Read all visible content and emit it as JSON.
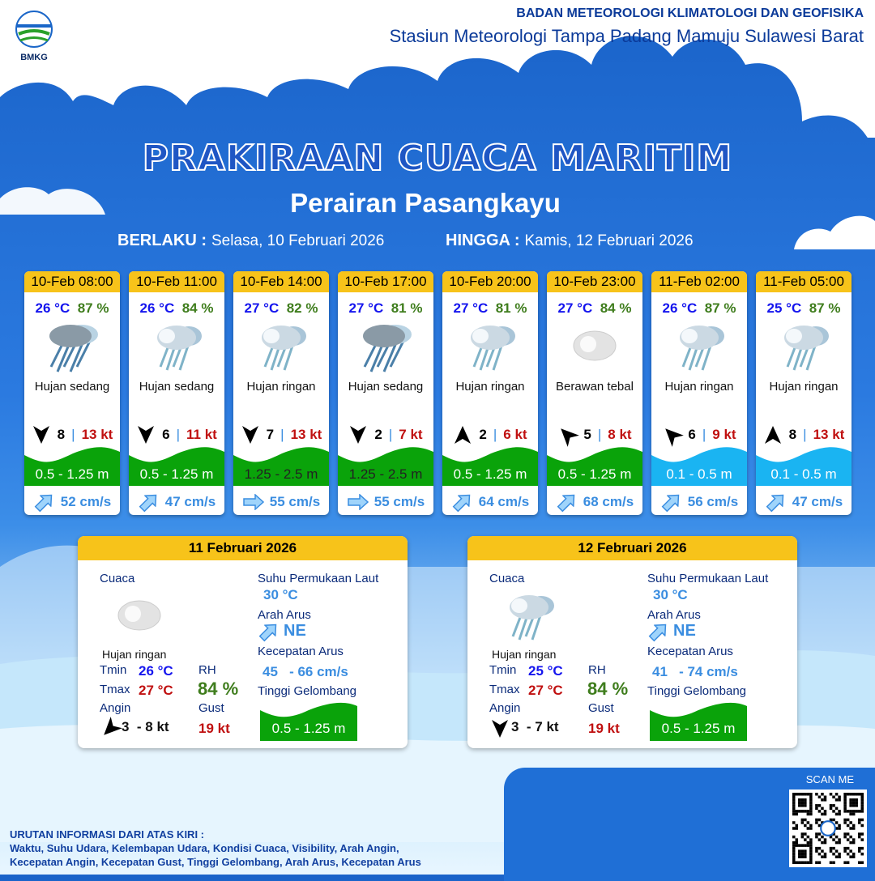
{
  "header": {
    "org": "BADAN METEOROLOGI KLIMATOLOGI DAN GEOFISIKA",
    "station": "Stasiun Meteorologi Tampa Padang Mamuju Sulawesi Barat",
    "logo_text": "BMKG"
  },
  "title": "PRAKIRAAN CUACA MARITIM",
  "subtitle": "Perairan Pasangkayu",
  "valid": {
    "from_label": "BERLAKU :",
    "from": "Selasa, 10 Februari 2026",
    "to_label": "HINGGA :",
    "to": "Kamis, 12 Februari 2026"
  },
  "colors": {
    "wave_green": "#0aa30a",
    "wave_blue": "#1ab4f2",
    "header_yellow": "#f7c31a"
  },
  "forecasts": [
    {
      "time": "10-Feb 08:00",
      "temp": "26 °C",
      "rh": "87 %",
      "icon": "heavy-rain-icon",
      "cond": "Hujan sedang",
      "wind_dir": "N",
      "wind_speed": "8",
      "gust": "13 kt",
      "wave": "0.5 - 1.25 m",
      "wave_color": "green",
      "current_dir": "NE",
      "current": "52 cm/s"
    },
    {
      "time": "10-Feb 11:00",
      "temp": "26 °C",
      "rh": "84 %",
      "icon": "light-rain-icon",
      "cond": "Hujan sedang",
      "wind_dir": "N",
      "wind_speed": "6",
      "gust": "11 kt",
      "wave": "0.5 - 1.25 m",
      "wave_color": "green",
      "current_dir": "NE",
      "current": "47 cm/s"
    },
    {
      "time": "10-Feb 14:00",
      "temp": "27 °C",
      "rh": "82 %",
      "icon": "light-rain-icon",
      "cond": "Hujan ringan",
      "wind_dir": "N",
      "wind_speed": "7",
      "gust": "13 kt",
      "wave": "1.25 - 2.5 m",
      "wave_color": "green",
      "current_dir": "E",
      "current": "55 cm/s"
    },
    {
      "time": "10-Feb 17:00",
      "temp": "27 °C",
      "rh": "81 %",
      "icon": "heavy-rain-icon",
      "cond": "Hujan sedang",
      "wind_dir": "N",
      "wind_speed": "2",
      "gust": "7 kt",
      "wave": "1.25 - 2.5 m",
      "wave_color": "green",
      "current_dir": "E",
      "current": "55 cm/s"
    },
    {
      "time": "10-Feb 20:00",
      "temp": "27 °C",
      "rh": "81 %",
      "icon": "light-rain-icon",
      "cond": "Hujan ringan",
      "wind_dir": "S",
      "wind_speed": "2",
      "gust": "6 kt",
      "wave": "0.5 - 1.25 m",
      "wave_color": "green",
      "current_dir": "NE",
      "current": "64 cm/s"
    },
    {
      "time": "10-Feb 23:00",
      "temp": "27 °C",
      "rh": "84 %",
      "icon": "cloudy-icon",
      "cond": "Berawan tebal",
      "wind_dir": "SE",
      "wind_speed": "5",
      "gust": "8 kt",
      "wave": "0.5 - 1.25 m",
      "wave_color": "green",
      "current_dir": "NE",
      "current": "68 cm/s"
    },
    {
      "time": "11-Feb 02:00",
      "temp": "26 °C",
      "rh": "87 %",
      "icon": "light-rain-icon",
      "cond": "Hujan ringan",
      "wind_dir": "SE",
      "wind_speed": "6",
      "gust": "9 kt",
      "wave": "0.1 - 0.5 m",
      "wave_color": "blue",
      "current_dir": "NE",
      "current": "56 cm/s"
    },
    {
      "time": "11-Feb 05:00",
      "temp": "25 °C",
      "rh": "87 %",
      "icon": "light-rain-icon",
      "cond": "Hujan ringan",
      "wind_dir": "S",
      "wind_speed": "8",
      "gust": "13 kt",
      "wave": "0.1 - 0.5 m",
      "wave_color": "blue",
      "current_dir": "NE",
      "current": "47 cm/s"
    }
  ],
  "labels": {
    "weather": "Cuaca",
    "sst": "Suhu Permukaan Laut",
    "current_dir": "Arah Arus",
    "current_speed": "Kecepatan Arus",
    "wave": "Tinggi Gelombang",
    "tmin": "Tmin",
    "tmax": "Tmax",
    "rh": "RH",
    "wind": "Angin",
    "gust": "Gust"
  },
  "daily": [
    {
      "date": "11 Februari 2026",
      "icon": "cloudy-icon",
      "cond": "Hujan ringan",
      "tmin": "26 °C",
      "tmax": "27 °C",
      "rh": "84 %",
      "wind": "3  - 8 kt",
      "gust": "19 kt",
      "sst": "30 °C",
      "current_dir": "NE",
      "current_speed": "45   - 66 cm/s",
      "wave": "0.5 - 1.25 m"
    },
    {
      "date": "12 Februari 2026",
      "icon": "light-rain-icon",
      "cond": "Hujan ringan",
      "tmin": "25 °C",
      "tmax": "27 °C",
      "rh": "84 %",
      "wind": "3  - 7 kt",
      "gust": "19 kt",
      "sst": "30 °C",
      "current_dir": "NE",
      "current_speed": "41   - 74 cm/s",
      "wave": "0.5 - 1.25 m"
    }
  ],
  "scan": "SCAN ME",
  "footer": {
    "title": "URUTAN INFORMASI DARI ATAS KIRI :",
    "line1": "Waktu, Suhu Udara, Kelembapan Udara, Kondisi Cuaca, Visibility, Arah Angin,",
    "line2": "Kecepatan Angin, Kecepatan Gust, Tinggi Gelombang, Arah Arus, Kecepatan Arus"
  }
}
